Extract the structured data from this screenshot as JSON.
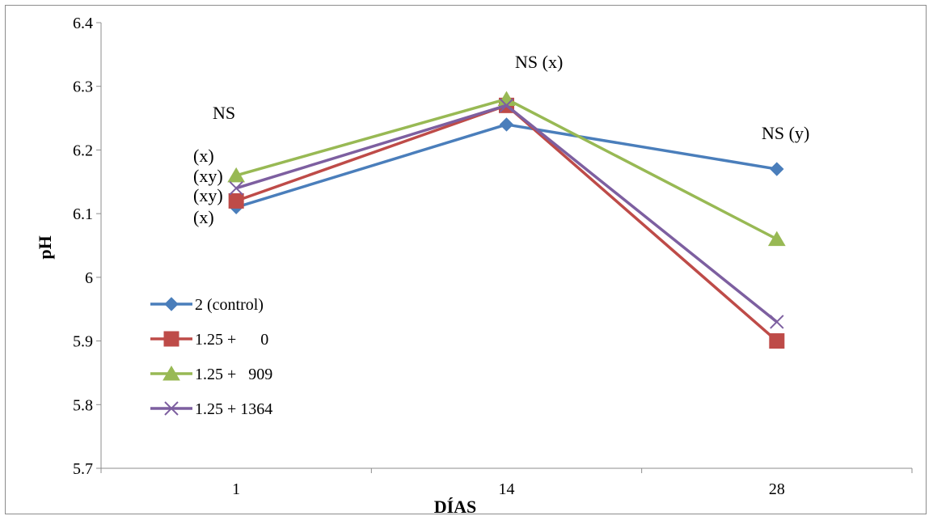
{
  "chart_data": {
    "type": "line",
    "xlabel": "DÍAS",
    "ylabel": "pH",
    "categories": [
      "1",
      "14",
      "28"
    ],
    "ylim": [
      5.7,
      6.4
    ],
    "yticks": [
      "5.7",
      "5.8",
      "5.9",
      "6",
      "6.1",
      "6.2",
      "6.3",
      "6.4"
    ],
    "grid": false,
    "legend_position": "left",
    "series": [
      {
        "name": "2 (control)",
        "values": [
          6.11,
          6.24,
          6.17
        ],
        "color": "#4a7ebb",
        "marker": "diamond"
      },
      {
        "name": "1.25 +      0",
        "values": [
          6.12,
          6.27,
          5.9
        ],
        "color": "#be4b48",
        "marker": "square"
      },
      {
        "name": "1.25 +   909",
        "values": [
          6.16,
          6.28,
          6.06
        ],
        "color": "#98b954",
        "marker": "triangle"
      },
      {
        "name": "1.25 + 1364",
        "values": [
          6.14,
          6.27,
          5.93
        ],
        "color": "#7d5fa0",
        "marker": "x"
      }
    ],
    "annotations": {
      "day1_header": "NS",
      "day1_labels": [
        "(x)",
        "(xy)",
        "(xy)",
        "(x)"
      ],
      "day14": "NS (x)",
      "day28": "NS (y)"
    }
  }
}
